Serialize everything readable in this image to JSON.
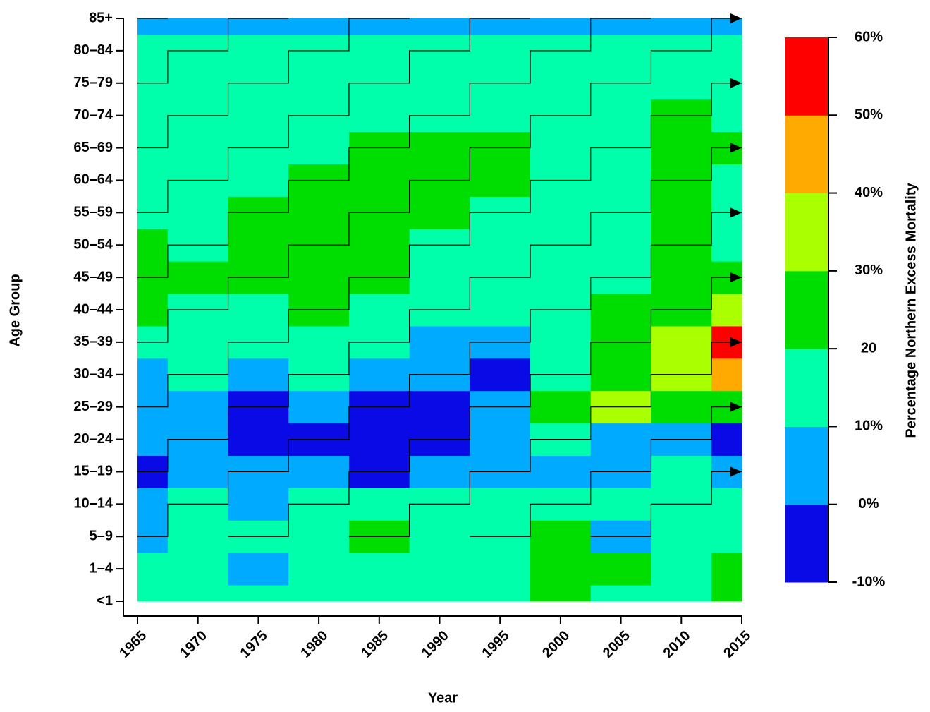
{
  "chart_data": {
    "type": "heatmap",
    "x_label": "Year",
    "y_label": "Age Group",
    "x": [
      1965,
      1970,
      1975,
      1980,
      1985,
      1990,
      1995,
      2000,
      2005,
      2010,
      2015
    ],
    "xlim": [
      1965,
      2015
    ],
    "xticks": [
      1965,
      1970,
      1975,
      1980,
      1985,
      1990,
      1995,
      2000,
      2005,
      2010,
      2015
    ],
    "categories": [
      "<1",
      "1–4",
      "5–9",
      "10–14",
      "15–19",
      "20–24",
      "25–29",
      "30–34",
      "35–39",
      "40–44",
      "45–49",
      "50–54",
      "55–59",
      "60–64",
      "65–69",
      "70–74",
      "75–79",
      "80–84",
      "85+"
    ],
    "values": [
      [
        15,
        15,
        15,
        15,
        15,
        15,
        15,
        25,
        15,
        15,
        25
      ],
      [
        15,
        15,
        5,
        15,
        15,
        15,
        15,
        25,
        25,
        15,
        25
      ],
      [
        5,
        15,
        15,
        15,
        25,
        15,
        15,
        25,
        5,
        15,
        15
      ],
      [
        5,
        15,
        5,
        15,
        15,
        15,
        15,
        15,
        15,
        15,
        15
      ],
      [
        -5,
        5,
        5,
        5,
        -5,
        5,
        5,
        5,
        5,
        15,
        5
      ],
      [
        5,
        5,
        -5,
        -5,
        -5,
        -5,
        5,
        15,
        5,
        5,
        -5
      ],
      [
        5,
        5,
        -5,
        5,
        -5,
        -5,
        5,
        25,
        35,
        25,
        25
      ],
      [
        5,
        15,
        5,
        15,
        5,
        5,
        -5,
        15,
        25,
        35,
        45
      ],
      [
        15,
        15,
        15,
        15,
        15,
        5,
        5,
        15,
        25,
        35,
        55
      ],
      [
        25,
        15,
        15,
        25,
        15,
        15,
        15,
        15,
        25,
        25,
        35
      ],
      [
        25,
        22,
        25,
        25,
        25,
        15,
        15,
        15,
        15,
        25,
        25
      ],
      [
        25,
        15,
        25,
        25,
        25,
        15,
        15,
        15,
        15,
        25,
        15
      ],
      [
        15,
        15,
        25,
        25,
        25,
        25,
        15,
        15,
        15,
        25,
        15
      ],
      [
        15,
        15,
        15,
        25,
        25,
        25,
        22,
        15,
        15,
        25,
        15
      ],
      [
        15,
        15,
        15,
        15,
        22,
        25,
        25,
        15,
        15,
        25,
        25
      ],
      [
        15,
        15,
        15,
        15,
        15,
        15,
        15,
        15,
        15,
        25,
        15
      ],
      [
        15,
        15,
        15,
        15,
        15,
        15,
        15,
        15,
        15,
        15,
        15
      ],
      [
        12,
        12,
        15,
        15,
        15,
        15,
        15,
        15,
        15,
        15,
        15
      ],
      [
        5,
        5,
        5,
        5,
        5,
        5,
        5,
        5,
        5,
        5,
        5
      ]
    ],
    "colorbar": {
      "label": "Percentage Northern Excess Mortality",
      "ticks": [
        {
          "value": -10,
          "label": "-10%"
        },
        {
          "value": 0,
          "label": "0%"
        },
        {
          "value": 10,
          "label": "10%"
        },
        {
          "value": 20,
          "label": "20"
        },
        {
          "value": 30,
          "label": "30%"
        },
        {
          "value": 40,
          "label": "40%"
        },
        {
          "value": 50,
          "label": "50%"
        },
        {
          "value": 60,
          "label": "60%"
        }
      ],
      "colors": [
        "#0a0ae6",
        "#00aaff",
        "#00ffaa",
        "#00dd00",
        "#aaff00",
        "#ffaa00",
        "#ff0000"
      ]
    }
  }
}
